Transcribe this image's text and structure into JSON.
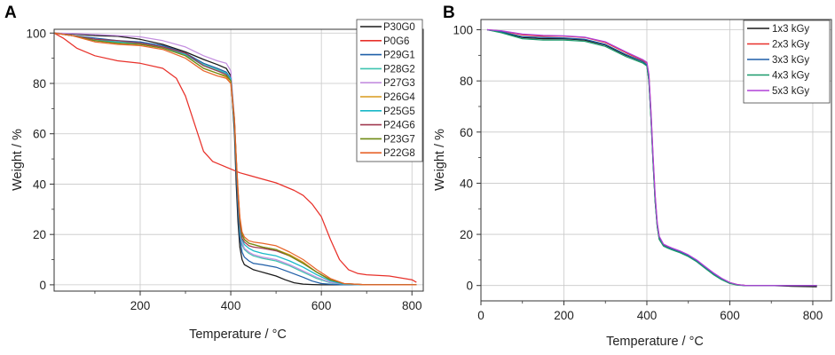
{
  "chart_data": [
    {
      "panel": "A",
      "type": "line",
      "xlabel": "Temperature / °C",
      "ylabel": "Weight / %",
      "xlim": [
        10,
        825
      ],
      "ylim": [
        -2.5,
        101.5
      ],
      "xticks": [
        200,
        400,
        600,
        800
      ],
      "yticks": [
        0,
        20,
        40,
        60,
        80,
        100
      ],
      "grid": true,
      "legend_position": "top-right",
      "series": [
        {
          "name": "P30G0",
          "color": "#1a1a1a",
          "x": [
            10,
            50,
            100,
            150,
            200,
            250,
            300,
            340,
            370,
            390,
            400,
            408,
            412,
            416,
            420,
            425,
            430,
            440,
            450,
            460,
            480,
            500,
            520,
            540,
            560,
            580,
            600,
            650,
            700,
            810
          ],
          "y": [
            100,
            99.6,
            99,
            98.7,
            97.5,
            95.5,
            92.5,
            89.5,
            87.5,
            86,
            83,
            60,
            40,
            25,
            15,
            10,
            8,
            7,
            6,
            5.5,
            4.5,
            3.5,
            2,
            0.8,
            0.3,
            0.1,
            0,
            0,
            0,
            0
          ]
        },
        {
          "name": "P0G6",
          "color": "#e8312a",
          "x": [
            10,
            30,
            60,
            100,
            150,
            200,
            250,
            280,
            300,
            320,
            340,
            360,
            380,
            400,
            420,
            440,
            460,
            500,
            540,
            560,
            580,
            600,
            620,
            640,
            660,
            680,
            700,
            750,
            800,
            810
          ],
          "y": [
            100,
            98,
            94,
            91,
            89,
            88,
            86,
            82,
            75,
            64,
            53,
            49,
            47.5,
            46,
            44.5,
            43.5,
            42.5,
            40.5,
            37.5,
            35.5,
            32,
            27,
            18,
            10,
            6,
            4.5,
            4,
            3.5,
            2,
            1
          ]
        },
        {
          "name": "P29G1",
          "color": "#1f5fa8",
          "x": [
            10,
            50,
            100,
            150,
            200,
            250,
            300,
            340,
            370,
            390,
            400,
            408,
            412,
            416,
            420,
            425,
            430,
            440,
            450,
            470,
            500,
            530,
            560,
            580,
            600,
            620,
            650,
            700,
            810
          ],
          "y": [
            100,
            99,
            98,
            97,
            96.5,
            95,
            92,
            88,
            86,
            84.5,
            82,
            62,
            45,
            30,
            19,
            13,
            11,
            9.5,
            8.5,
            8,
            7,
            5,
            3,
            1.5,
            0.5,
            0.2,
            0,
            0,
            0
          ]
        },
        {
          "name": "P28G2",
          "color": "#3ec4b0",
          "x": [
            10,
            50,
            100,
            150,
            200,
            250,
            300,
            340,
            370,
            390,
            400,
            408,
            412,
            416,
            420,
            425,
            430,
            440,
            450,
            470,
            500,
            530,
            560,
            590,
            620,
            650,
            700,
            810
          ],
          "y": [
            100,
            99,
            97.5,
            96.5,
            96,
            94.5,
            91.5,
            87.5,
            85.5,
            84,
            81,
            64,
            48,
            34,
            22,
            16,
            14,
            12.5,
            11.5,
            10.5,
            9.5,
            7.5,
            5,
            2.5,
            0.8,
            0.2,
            0,
            0
          ]
        },
        {
          "name": "P27G3",
          "color": "#c48fe0",
          "x": [
            10,
            50,
            100,
            150,
            200,
            250,
            300,
            340,
            370,
            390,
            400,
            408,
            412,
            416,
            420,
            425,
            430,
            440,
            450,
            470,
            500,
            530,
            560,
            590,
            620,
            650,
            700,
            810
          ],
          "y": [
            100,
            99.8,
            99.5,
            99,
            98.5,
            97,
            94.5,
            91,
            89,
            88,
            85,
            66,
            50,
            36,
            24,
            17,
            14.5,
            13,
            12,
            11,
            10,
            8,
            5.5,
            3,
            1,
            0.3,
            0,
            0
          ]
        },
        {
          "name": "P26G4",
          "color": "#d99a1c",
          "x": [
            10,
            50,
            100,
            150,
            200,
            250,
            300,
            340,
            370,
            390,
            400,
            408,
            412,
            416,
            420,
            425,
            430,
            440,
            450,
            470,
            500,
            530,
            560,
            590,
            620,
            650,
            700,
            810
          ],
          "y": [
            100,
            99,
            97,
            96,
            95.5,
            94.5,
            91,
            86,
            84,
            82.5,
            80,
            65,
            50,
            37,
            26,
            20,
            18,
            16.5,
            16,
            15,
            14,
            12,
            9,
            5,
            1.8,
            0.4,
            0,
            0
          ]
        },
        {
          "name": "P25G5",
          "color": "#18b8c8",
          "x": [
            10,
            50,
            100,
            150,
            200,
            250,
            300,
            340,
            370,
            390,
            400,
            408,
            412,
            416,
            420,
            425,
            430,
            440,
            450,
            470,
            500,
            530,
            560,
            590,
            620,
            650,
            700,
            810
          ],
          "y": [
            100,
            99,
            97,
            96.5,
            96,
            94.5,
            91.5,
            87,
            85,
            84,
            82,
            66,
            50,
            36,
            24,
            18,
            16,
            14.5,
            13.5,
            12.5,
            11.5,
            9.5,
            7,
            4,
            1.5,
            0.3,
            0,
            0
          ]
        },
        {
          "name": "P24G6",
          "color": "#a03a50",
          "x": [
            10,
            50,
            100,
            150,
            200,
            250,
            300,
            340,
            370,
            390,
            400,
            408,
            412,
            416,
            420,
            425,
            430,
            440,
            450,
            470,
            500,
            530,
            560,
            590,
            620,
            650,
            700,
            810
          ],
          "y": [
            100,
            99,
            97.5,
            97,
            96,
            94.5,
            92,
            87,
            85,
            83.5,
            81,
            65,
            49,
            35,
            24,
            18.5,
            17,
            15.5,
            15,
            14.5,
            13.5,
            11.5,
            8.5,
            5,
            2,
            0.5,
            0,
            0
          ]
        },
        {
          "name": "P23G7",
          "color": "#6f8a14",
          "x": [
            10,
            50,
            100,
            150,
            200,
            250,
            300,
            340,
            370,
            390,
            400,
            408,
            412,
            416,
            420,
            425,
            430,
            440,
            450,
            470,
            500,
            530,
            560,
            590,
            620,
            650,
            700,
            810
          ],
          "y": [
            100,
            99,
            97,
            96,
            95.5,
            94,
            91,
            86,
            84,
            83,
            81,
            65,
            50,
            37,
            26,
            20,
            18,
            16.5,
            16,
            15,
            14,
            11.5,
            8.5,
            5,
            2,
            0.5,
            0,
            0
          ]
        },
        {
          "name": "P22G8",
          "color": "#e8652a",
          "x": [
            10,
            50,
            100,
            150,
            200,
            250,
            300,
            340,
            370,
            390,
            400,
            408,
            412,
            416,
            420,
            425,
            430,
            440,
            450,
            470,
            500,
            530,
            560,
            590,
            620,
            650,
            700,
            810
          ],
          "y": [
            100,
            99,
            96.5,
            95.5,
            95,
            93.5,
            90,
            85,
            83,
            82,
            80,
            66,
            51,
            38,
            27,
            21,
            19,
            17.5,
            17,
            16.5,
            15.5,
            13,
            10,
            6,
            2.5,
            0.5,
            0,
            0
          ]
        }
      ]
    },
    {
      "panel": "B",
      "type": "line",
      "xlabel": "Temperature / °C",
      "ylabel": "Weight / %",
      "xlim": [
        0,
        845
      ],
      "ylim": [
        -6,
        104
      ],
      "xticks": [
        0,
        200,
        400,
        600,
        800
      ],
      "yticks": [
        0,
        20,
        40,
        60,
        80,
        100
      ],
      "grid": true,
      "legend_position": "top-right",
      "series": [
        {
          "name": "1x3 kGy",
          "color": "#1a1a1a",
          "x": [
            15,
            50,
            100,
            150,
            200,
            250,
            300,
            350,
            390,
            400,
            405,
            410,
            415,
            420,
            425,
            430,
            440,
            450,
            460,
            480,
            500,
            520,
            540,
            560,
            580,
            600,
            620,
            640,
            660,
            700,
            750,
            810
          ],
          "y": [
            100,
            99,
            97,
            96.5,
            96.5,
            96,
            94,
            90,
            87.5,
            86,
            80,
            65,
            48,
            33,
            23,
            18,
            15.5,
            14.8,
            14.2,
            13,
            11.5,
            9.5,
            7,
            4.5,
            2.5,
            1,
            0.2,
            0,
            0,
            0,
            -0.3,
            -0.5
          ]
        },
        {
          "name": "2x3 kGy",
          "color": "#e8312a",
          "x": [
            15,
            50,
            100,
            150,
            200,
            250,
            300,
            350,
            390,
            400,
            405,
            410,
            415,
            420,
            425,
            430,
            440,
            450,
            460,
            480,
            500,
            520,
            540,
            560,
            580,
            600,
            620,
            640,
            660,
            700,
            750,
            810
          ],
          "y": [
            100,
            99.5,
            98,
            97.5,
            97.5,
            97,
            95,
            91,
            88,
            87,
            82,
            67,
            50,
            35,
            24,
            19,
            16,
            15.2,
            14.5,
            13.3,
            11.8,
            9.8,
            7.3,
            4.8,
            2.7,
            1.1,
            0.3,
            0,
            0,
            0,
            0,
            0
          ]
        },
        {
          "name": "3x3 kGy",
          "color": "#1f5fa8",
          "x": [
            15,
            50,
            100,
            150,
            200,
            250,
            300,
            350,
            390,
            400,
            405,
            410,
            415,
            420,
            425,
            430,
            440,
            450,
            460,
            480,
            500,
            520,
            540,
            560,
            580,
            600,
            620,
            640,
            660,
            700,
            750,
            810
          ],
          "y": [
            100,
            99.2,
            97.3,
            97,
            96.8,
            96.3,
            94.3,
            90.3,
            87.6,
            86.3,
            80.5,
            65.5,
            48.5,
            33.5,
            23.5,
            18.5,
            15.7,
            14.9,
            14.3,
            13.1,
            11.6,
            9.6,
            7.1,
            4.6,
            2.6,
            1,
            0.2,
            0,
            0,
            0,
            0,
            0
          ]
        },
        {
          "name": "4x3 kGy",
          "color": "#1a9a6a",
          "x": [
            15,
            50,
            100,
            150,
            200,
            250,
            300,
            350,
            390,
            400,
            405,
            410,
            415,
            420,
            425,
            430,
            440,
            450,
            460,
            480,
            500,
            520,
            540,
            560,
            580,
            600,
            620,
            640,
            660,
            700,
            750,
            810
          ],
          "y": [
            100,
            98.8,
            96.5,
            96,
            96,
            95.5,
            93.5,
            89.5,
            87,
            85.8,
            80,
            65,
            48,
            33,
            23,
            18,
            15.4,
            14.6,
            14,
            12.8,
            11.3,
            9.3,
            6.8,
            4.3,
            2.3,
            0.8,
            0.1,
            0,
            0,
            0,
            0,
            0
          ]
        },
        {
          "name": "5x3 kGy",
          "color": "#b040d8",
          "x": [
            15,
            50,
            100,
            150,
            200,
            250,
            300,
            350,
            390,
            400,
            405,
            410,
            415,
            420,
            425,
            430,
            440,
            450,
            460,
            480,
            500,
            520,
            540,
            560,
            580,
            600,
            620,
            640,
            660,
            700,
            750,
            810
          ],
          "y": [
            100,
            99.6,
            98.3,
            97.8,
            97.6,
            97.1,
            95.3,
            91.3,
            88.3,
            87.3,
            82.5,
            67.5,
            50.5,
            35.5,
            24.5,
            19.2,
            16.2,
            15.4,
            14.7,
            13.5,
            12,
            10,
            7.5,
            5,
            2.9,
            1.2,
            0.3,
            0,
            0,
            0,
            0,
            0
          ]
        }
      ]
    }
  ]
}
